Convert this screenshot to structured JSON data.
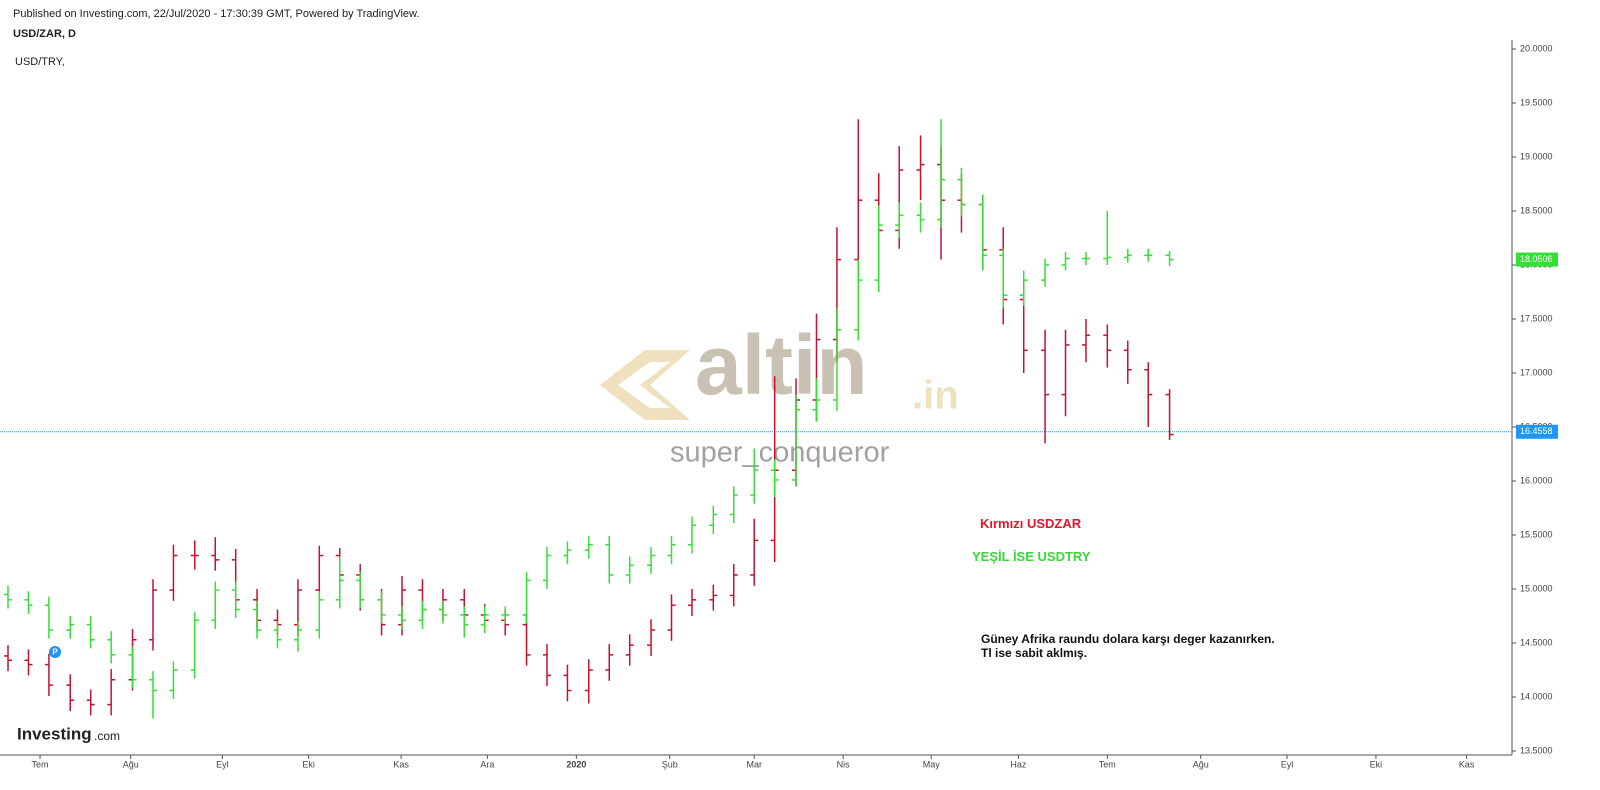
{
  "header": {
    "published": "Published on Investing.com, 22/Jul/2020 - 17:30:39 GMT, Powered by TradingView.",
    "symbol": "USD/ZAR, D",
    "overlay": "USD/TRY,"
  },
  "watermark": {
    "brand": "altin",
    "suffix": ".in",
    "user": "super_conqueror"
  },
  "logo": {
    "name": "Investing",
    "suffix": ".com"
  },
  "annotations": {
    "red_note": "Kırmızı USDZAR",
    "green_note": "YEŞİL İSE USDTRY",
    "comment_line1": "Güney Afrika raundu dolara karşı deger kazanırken.",
    "comment_line2": "Tl ise sabit aklmış."
  },
  "chart_data": {
    "type": "ohlc",
    "xlim": [
      -0.45,
      16.55
    ],
    "xticks": [
      {
        "value": 0,
        "label": "Tem"
      },
      {
        "value": 1.02,
        "label": "Ağu"
      },
      {
        "value": 2.05,
        "label": "Eyl"
      },
      {
        "value": 3.02,
        "label": "Eki"
      },
      {
        "value": 4.06,
        "label": "Kas"
      },
      {
        "value": 5.03,
        "label": "Ara"
      },
      {
        "value": 6.03,
        "label": "2020"
      },
      {
        "value": 7.08,
        "label": "Şub"
      },
      {
        "value": 8.03,
        "label": "Mar"
      },
      {
        "value": 9.03,
        "label": "Nis"
      },
      {
        "value": 10.02,
        "label": "May"
      },
      {
        "value": 11.0,
        "label": "Haz"
      },
      {
        "value": 12.0,
        "label": "Tem"
      },
      {
        "value": 13.05,
        "label": "Ağu"
      },
      {
        "value": 14.02,
        "label": "Eyl"
      },
      {
        "value": 15.02,
        "label": "Eki"
      },
      {
        "value": 16.04,
        "label": "Kas"
      }
    ],
    "ylim": [
      13.5,
      20.0
    ],
    "yticks": [
      {
        "value": 13.5,
        "label": "13.5000"
      },
      {
        "value": 14,
        "label": "14.0000"
      },
      {
        "value": 14.5,
        "label": "14.5000"
      },
      {
        "value": 15,
        "label": "15.0000"
      },
      {
        "value": 15.5,
        "label": "15.5000"
      },
      {
        "value": 16,
        "label": "16.0000"
      },
      {
        "value": 16.5,
        "label": "16.5000"
      },
      {
        "value": 17,
        "label": "17.0000"
      },
      {
        "value": 17.5,
        "label": "17.5000"
      },
      {
        "value": 18,
        "label": "18.0000"
      },
      {
        "value": 18.5,
        "label": "18.5000"
      },
      {
        "value": 19,
        "label": "19.0000"
      },
      {
        "value": 19.5,
        "label": "19.5000"
      },
      {
        "value": 20,
        "label": "20.0000"
      }
    ],
    "x": [
      -0.36,
      -0.13,
      0.1,
      0.34,
      0.57,
      0.8,
      1.04,
      1.27,
      1.5,
      1.74,
      1.97,
      2.2,
      2.44,
      2.67,
      2.9,
      3.14,
      3.37,
      3.6,
      3.84,
      4.07,
      4.3,
      4.53,
      4.77,
      5.0,
      5.23,
      5.47,
      5.7,
      5.93,
      6.17,
      6.4,
      6.63,
      6.87,
      7.1,
      7.33,
      7.57,
      7.8,
      8.03,
      8.26,
      8.5,
      8.73,
      8.96,
      9.2,
      9.43,
      9.66,
      9.9,
      10.13,
      10.36,
      10.6,
      10.83,
      11.06,
      11.3,
      11.53,
      11.76,
      12.0,
      12.23,
      12.46,
      12.7
    ],
    "series": [
      {
        "name": "USD/ZAR",
        "color": "#c8102e",
        "open": [
          14.38,
          14.34,
          14.3,
          14.11,
          13.97,
          13.93,
          14.16,
          14.53,
          14.99,
          15.31,
          15.31,
          15.27,
          14.9,
          14.71,
          14.67,
          14.99,
          15.31,
          15.13,
          14.9,
          14.67,
          14.99,
          14.81,
          14.9,
          14.76,
          14.71,
          14.67,
          14.39,
          14.2,
          14.06,
          14.25,
          14.39,
          14.48,
          14.62,
          14.85,
          14.9,
          14.94,
          15.13,
          15.45,
          16.1,
          16.75,
          17.31,
          18.05,
          18.6,
          18.32,
          18.88,
          18.93,
          18.6,
          18.56,
          18.14,
          17.68,
          17.21,
          16.8,
          17.26,
          17.35,
          17.21,
          17.03,
          16.8
        ],
        "high": [
          14.48,
          14.44,
          14.4,
          14.21,
          14.07,
          14.26,
          14.63,
          15.09,
          15.41,
          15.45,
          15.48,
          15.37,
          15.0,
          14.81,
          15.09,
          15.4,
          15.38,
          15.23,
          15.0,
          15.12,
          15.09,
          15.0,
          15.0,
          14.86,
          14.81,
          14.77,
          14.49,
          14.3,
          14.35,
          14.49,
          14.58,
          14.72,
          14.95,
          15.0,
          15.04,
          15.23,
          15.65,
          16.97,
          16.95,
          17.55,
          18.35,
          19.35,
          18.85,
          19.1,
          19.2,
          19.1,
          18.85,
          18.65,
          18.35,
          17.85,
          17.4,
          17.4,
          17.5,
          17.45,
          17.3,
          17.1,
          16.85
        ],
        "low": [
          14.24,
          14.2,
          14.01,
          13.87,
          13.83,
          13.83,
          14.06,
          14.43,
          14.89,
          15.18,
          15.17,
          14.8,
          14.61,
          14.57,
          14.57,
          14.89,
          15.03,
          14.8,
          14.57,
          14.57,
          14.71,
          14.71,
          14.66,
          14.61,
          14.57,
          14.29,
          14.1,
          13.96,
          13.94,
          14.15,
          14.29,
          14.38,
          14.52,
          14.75,
          14.8,
          14.84,
          15.03,
          15.25,
          15.95,
          16.55,
          17.1,
          17.85,
          18.1,
          18.15,
          18.6,
          18.05,
          18.3,
          17.95,
          17.45,
          17.0,
          16.35,
          16.6,
          17.1,
          17.05,
          16.9,
          16.5,
          16.38
        ],
        "close": [
          14.34,
          14.3,
          14.11,
          13.97,
          13.93,
          14.16,
          14.53,
          14.99,
          15.31,
          15.31,
          15.27,
          14.9,
          14.71,
          14.67,
          14.99,
          15.31,
          15.13,
          14.9,
          14.67,
          14.99,
          14.81,
          14.9,
          14.76,
          14.71,
          14.67,
          14.39,
          14.2,
          14.06,
          14.25,
          14.39,
          14.48,
          14.62,
          14.85,
          14.9,
          14.94,
          15.13,
          15.45,
          16.1,
          16.75,
          17.31,
          18.05,
          18.6,
          18.32,
          18.88,
          18.93,
          18.6,
          18.56,
          18.14,
          17.68,
          17.21,
          16.8,
          17.26,
          17.35,
          17.21,
          17.03,
          16.8,
          16.43
        ]
      },
      {
        "name": "USD/TRY",
        "color": "#35e035",
        "open": [
          14.95,
          14.9,
          14.85,
          14.62,
          14.67,
          14.53,
          14.39,
          14.16,
          14.06,
          14.25,
          14.71,
          14.99,
          14.81,
          14.62,
          14.53,
          14.62,
          14.9,
          15.08,
          14.9,
          14.76,
          14.71,
          14.81,
          14.76,
          14.67,
          14.76,
          14.76,
          15.08,
          15.31,
          15.36,
          15.41,
          15.13,
          15.22,
          15.31,
          15.41,
          15.59,
          15.69,
          15.87,
          16.1,
          16.01,
          16.66,
          16.75,
          17.4,
          17.86,
          18.37,
          18.46,
          18.42,
          18.79,
          18.56,
          18.09,
          17.72,
          17.86,
          18.0,
          18.06,
          18.06,
          18.07,
          18.09,
          18.09
        ],
        "high": [
          15.03,
          14.98,
          14.93,
          14.75,
          14.75,
          14.61,
          14.47,
          14.24,
          14.33,
          14.79,
          15.07,
          15.07,
          14.89,
          14.7,
          14.7,
          14.98,
          15.3,
          15.16,
          14.98,
          14.84,
          14.89,
          14.89,
          14.84,
          14.84,
          14.84,
          15.16,
          15.39,
          15.44,
          15.49,
          15.49,
          15.3,
          15.39,
          15.49,
          15.67,
          15.77,
          15.95,
          16.3,
          16.2,
          16.8,
          16.95,
          17.6,
          18.05,
          18.55,
          18.58,
          18.58,
          19.35,
          18.9,
          18.65,
          18.15,
          17.95,
          18.06,
          18.12,
          18.12,
          18.5,
          18.15,
          18.15,
          18.13
        ],
        "low": [
          14.82,
          14.77,
          14.54,
          14.54,
          14.45,
          14.31,
          14.08,
          13.8,
          13.98,
          14.17,
          14.63,
          14.73,
          14.54,
          14.45,
          14.42,
          14.54,
          14.82,
          14.82,
          14.68,
          14.63,
          14.63,
          14.68,
          14.55,
          14.59,
          14.68,
          14.68,
          15.0,
          15.23,
          15.28,
          15.05,
          15.05,
          15.14,
          15.23,
          15.33,
          15.51,
          15.61,
          15.79,
          15.85,
          15.95,
          16.55,
          16.65,
          17.3,
          17.75,
          18.25,
          18.3,
          18.35,
          18.45,
          17.95,
          17.6,
          17.62,
          17.8,
          17.95,
          18.0,
          18.0,
          18.02,
          18.03,
          17.99
        ],
        "close": [
          14.9,
          14.85,
          14.62,
          14.67,
          14.53,
          14.39,
          14.16,
          14.06,
          14.25,
          14.71,
          14.99,
          14.81,
          14.62,
          14.53,
          14.62,
          14.9,
          15.08,
          14.9,
          14.76,
          14.71,
          14.81,
          14.76,
          14.67,
          14.76,
          14.76,
          15.08,
          15.31,
          15.36,
          15.41,
          15.13,
          15.22,
          15.31,
          15.41,
          15.59,
          15.69,
          15.87,
          16.1,
          16.01,
          16.66,
          16.75,
          17.4,
          17.86,
          18.37,
          18.46,
          18.42,
          18.79,
          18.56,
          18.09,
          17.72,
          17.86,
          18.0,
          18.06,
          18.06,
          18.07,
          18.09,
          18.09,
          18.05
        ]
      }
    ],
    "price_lines": [
      {
        "value": 16.4558,
        "color": "#2196f3",
        "dashed": true
      },
      {
        "value": 18.0506,
        "color": "#35e035",
        "dashed": false
      }
    ]
  }
}
